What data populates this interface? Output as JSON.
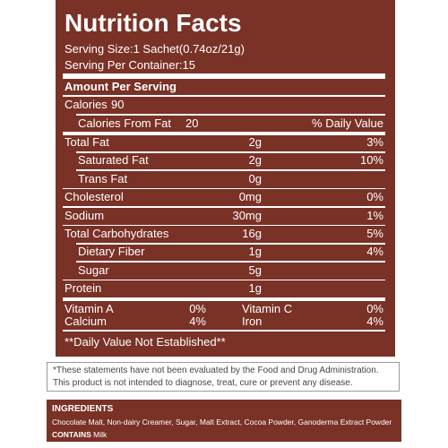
{
  "label": {
    "title": "Nutrition Facts",
    "serving_size": "Serving Size:1 Sachet(0.74oz/21g)",
    "servings": "Serving Per Container:15",
    "amount_per_serving": "Amount Per Serving",
    "calories": {
      "label": "Calories",
      "value": "90"
    },
    "calories_from_fat": {
      "label": "Calories From Fat",
      "value": "20"
    },
    "daily_value_header": "% Daily  Value",
    "rows": [
      {
        "name": "Total Fat",
        "amount": "2g",
        "dv": "3%"
      },
      {
        "name": "Saturated Fat",
        "amount": "2g",
        "dv": "10%"
      },
      {
        "name": "Trans Fat",
        "amount": "0g",
        "dv": null
      },
      {
        "name": "Cholesterol",
        "amount": "0mg",
        "dv": "0%"
      },
      {
        "name": "Sodium",
        "amount": "30mg",
        "dv": "1%"
      },
      {
        "name": "Total Carbohydrates",
        "amount": "16g",
        "dv": "5%"
      },
      {
        "name": "Dietary  Fiber",
        "amount": "1g",
        "dv": "4%"
      },
      {
        "name": "Sugar",
        "amount": "5g",
        "dv": null
      },
      {
        "name": "Protein",
        "amount": "1g",
        "dv": null
      }
    ],
    "vitamins": [
      {
        "name": "Vitamin A",
        "dv": "0%"
      },
      {
        "name": "Vitamin C",
        "dv": "0%"
      },
      {
        "name": "Calcium",
        "dv": "4%"
      },
      {
        "name": "Iron",
        "dv": "4%"
      }
    ],
    "footnote": "**Daily Value Not Established**"
  },
  "disclaimer": {
    "lines": [
      "*These statements have not been evaluated by the Food and Drug Administration.",
      "This product is not intended to diagnose, treat, cure or prevent any disease."
    ]
  },
  "ingredients": {
    "heading": "INGREDIENTS",
    "text": "Chocolate Malt, Non-dairy Creamer, Sugar, Malt Extract, Cocoa Powder, Ganoderma Extract Powder",
    "contains_label": "CONTAINS",
    "contains": "Milk"
  }
}
